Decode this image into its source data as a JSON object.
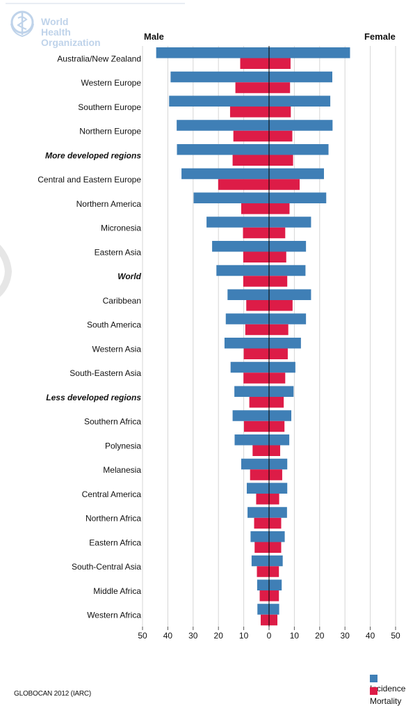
{
  "header": {
    "org_line1": "World Health",
    "org_line2": "Organization",
    "male_label": "Male",
    "female_label": "Female"
  },
  "footer": {
    "source": "GLOBOCAN 2012 (IARC)"
  },
  "legend": {
    "incidence": "Incidence",
    "mortality": "Mortality"
  },
  "colors": {
    "incidence": "#3f7fb6",
    "mortality": "#dd1c47",
    "grid": "#d6d6d6",
    "axis": "#000000"
  },
  "chart_data": {
    "type": "bar",
    "orientation": "horizontal",
    "layout": "population-pyramid",
    "xlim": [
      -50,
      50
    ],
    "x_ticks": [
      -50,
      -40,
      -30,
      -20,
      -10,
      0,
      10,
      20,
      30,
      40,
      50
    ],
    "x_tick_labels": [
      "50",
      "40",
      "30",
      "20",
      "10",
      "0",
      "10",
      "20",
      "30",
      "40",
      "50"
    ],
    "grid": true,
    "legend_position": "bottom-right",
    "categories": [
      {
        "label": "Australia/New Zealand",
        "bold": false
      },
      {
        "label": "Western Europe",
        "bold": false
      },
      {
        "label": "Southern Europe",
        "bold": false
      },
      {
        "label": "Northern Europe",
        "bold": false
      },
      {
        "label": "More developed regions",
        "bold": true
      },
      {
        "label": "Central and Eastern Europe",
        "bold": false
      },
      {
        "label": "Northern America",
        "bold": false
      },
      {
        "label": "Micronesia",
        "bold": false
      },
      {
        "label": "Eastern Asia",
        "bold": false
      },
      {
        "label": "World",
        "bold": true
      },
      {
        "label": "Caribbean",
        "bold": false
      },
      {
        "label": "South America",
        "bold": false
      },
      {
        "label": "Western Asia",
        "bold": false
      },
      {
        "label": "South-Eastern Asia",
        "bold": false
      },
      {
        "label": "Less developed regions",
        "bold": true
      },
      {
        "label": "Southern Africa",
        "bold": false
      },
      {
        "label": "Polynesia",
        "bold": false
      },
      {
        "label": "Melanesia",
        "bold": false
      },
      {
        "label": "Central America",
        "bold": false
      },
      {
        "label": "Northern Africa",
        "bold": false
      },
      {
        "label": "Eastern Africa",
        "bold": false
      },
      {
        "label": "South-Central Asia",
        "bold": false
      },
      {
        "label": "Middle Africa",
        "bold": false
      },
      {
        "label": "Western Africa",
        "bold": false
      }
    ],
    "series": [
      {
        "name": "Incidence",
        "sex": "Male",
        "values": [
          44.6,
          38.9,
          39.5,
          36.5,
          36.4,
          34.6,
          29.8,
          24.7,
          22.5,
          20.8,
          16.4,
          17.1,
          17.6,
          15.2,
          13.7,
          14.4,
          13.6,
          11.0,
          8.8,
          8.5,
          7.3,
          6.9,
          4.7,
          4.6
        ]
      },
      {
        "name": "Mortality",
        "sex": "Male",
        "values": [
          11.4,
          13.3,
          15.4,
          14.1,
          14.4,
          20.1,
          11.0,
          10.3,
          10.2,
          10.2,
          9.0,
          9.4,
          10.0,
          10.1,
          7.8,
          9.9,
          6.5,
          7.5,
          5.1,
          5.9,
          5.7,
          4.8,
          3.7,
          3.3
        ]
      },
      {
        "name": "Incidence",
        "sex": "Female",
        "values": [
          32.0,
          25.0,
          24.2,
          25.1,
          23.5,
          21.7,
          22.6,
          16.6,
          14.6,
          14.4,
          16.6,
          14.6,
          12.6,
          10.4,
          9.7,
          8.8,
          8.0,
          7.2,
          7.2,
          7.1,
          6.2,
          5.4,
          5.0,
          4.0
        ]
      },
      {
        "name": "Mortality",
        "sex": "Female",
        "values": [
          8.5,
          8.3,
          8.6,
          9.2,
          9.5,
          12.1,
          8.1,
          6.4,
          6.8,
          7.2,
          9.3,
          7.6,
          7.4,
          6.4,
          5.8,
          6.1,
          4.4,
          5.2,
          4.0,
          4.8,
          4.8,
          3.9,
          3.9,
          3.3
        ]
      }
    ]
  }
}
